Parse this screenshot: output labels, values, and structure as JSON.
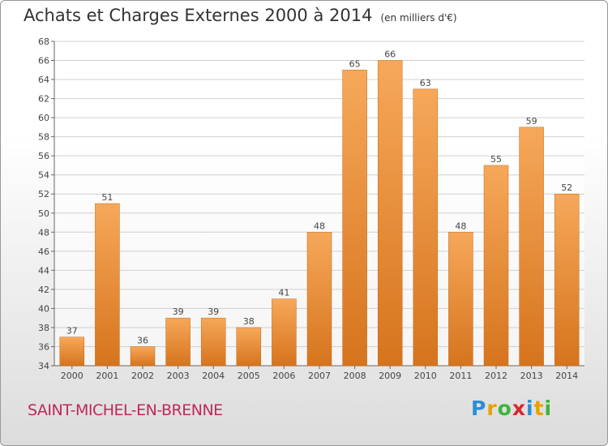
{
  "title": "Achats et Charges Externes 2000 à 2014",
  "unit": "(en milliers d'€)",
  "place": "SAINT-MICHEL-EN-BRENNE",
  "logo": {
    "letters": [
      "P",
      "r",
      "o",
      "x",
      "i",
      "t",
      "i"
    ],
    "colors": [
      "#2a8fd4",
      "#e8a200",
      "#3db43d",
      "#d9262e",
      "#2a8fd4",
      "#e8a200",
      "#3db43d"
    ]
  },
  "colors": {
    "bar_light": "#f6a85a",
    "bar_dark": "#d6741d"
  },
  "chart_data": {
    "type": "bar",
    "categories": [
      "2000",
      "2001",
      "2002",
      "2003",
      "2004",
      "2005",
      "2006",
      "2007",
      "2008",
      "2009",
      "2010",
      "2011",
      "2012",
      "2013",
      "2014"
    ],
    "values": [
      37,
      51,
      36,
      39,
      39,
      38,
      41,
      48,
      65,
      66,
      63,
      48,
      55,
      59,
      52
    ],
    "ylim": [
      34,
      68
    ],
    "yticks": [
      34,
      36,
      38,
      40,
      42,
      44,
      46,
      48,
      50,
      52,
      54,
      56,
      58,
      60,
      62,
      64,
      66,
      68
    ],
    "grid": true,
    "xlabel": "",
    "ylabel": ""
  }
}
